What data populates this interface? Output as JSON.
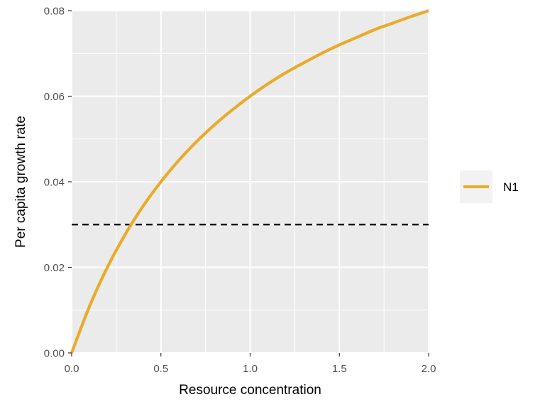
{
  "chart_data": {
    "type": "line",
    "title": "",
    "xlabel": "Resource concentration",
    "ylabel": "Per capita growth rate",
    "xlim": [
      0,
      2
    ],
    "ylim": [
      0,
      0.08
    ],
    "x_ticks": [
      "0.0",
      "0.5",
      "1.0",
      "1.5",
      "2.0"
    ],
    "y_ticks": [
      "0.00",
      "0.02",
      "0.04",
      "0.06",
      "0.08"
    ],
    "grid": true,
    "legend_position": "right",
    "series": [
      {
        "name": "N1",
        "color": "#E9AB2B",
        "x": [
          0,
          0.1,
          0.2,
          0.3,
          0.4,
          0.5,
          0.6,
          0.7,
          0.8,
          0.9,
          1.0,
          1.1,
          1.2,
          1.3,
          1.4,
          1.5,
          1.6,
          1.7,
          1.8,
          1.9,
          2.0
        ],
        "y": [
          0,
          0.0109,
          0.02,
          0.0277,
          0.0343,
          0.04,
          0.045,
          0.0494,
          0.0533,
          0.0568,
          0.06,
          0.0629,
          0.0655,
          0.0678,
          0.07,
          0.072,
          0.0738,
          0.0756,
          0.0771,
          0.0786,
          0.08
        ]
      }
    ],
    "reference_lines": [
      {
        "orientation": "horizontal",
        "y": 0.03,
        "style": "dashed",
        "color": "#000000"
      }
    ]
  }
}
